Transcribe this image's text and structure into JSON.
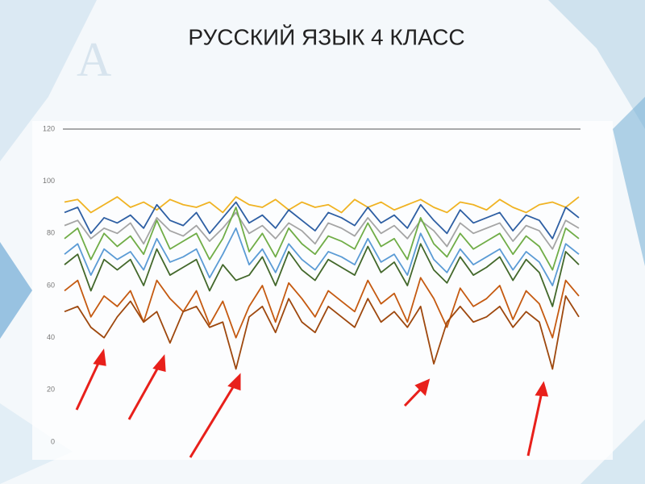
{
  "chart_data": {
    "type": "line",
    "title": "РУССКИЙ ЯЗЫК 4 КЛАСС",
    "ylim": [
      0,
      120
    ],
    "yticks": [
      0,
      20,
      40,
      60,
      80,
      100,
      120
    ],
    "grid": false,
    "series": [
      {
        "name": null,
        "color": "#f0b323",
        "values": [
          92,
          93,
          88,
          91,
          94,
          90,
          92,
          89,
          93,
          91,
          90,
          92,
          88,
          94,
          91,
          90,
          93,
          89,
          92,
          90,
          91,
          88,
          93,
          90,
          92,
          89,
          91,
          93,
          90,
          88,
          92,
          91,
          89,
          93,
          90,
          88,
          91,
          92,
          90,
          94
        ]
      },
      {
        "name": null,
        "color": "#2e5fa3",
        "values": [
          88,
          90,
          80,
          86,
          84,
          87,
          82,
          91,
          85,
          83,
          88,
          80,
          86,
          92,
          84,
          87,
          82,
          89,
          85,
          81,
          88,
          86,
          83,
          90,
          84,
          87,
          82,
          91,
          85,
          80,
          89,
          84,
          86,
          88,
          81,
          87,
          85,
          78,
          90,
          86
        ]
      },
      {
        "name": null,
        "color": "#a5a5a5",
        "values": [
          83,
          85,
          78,
          82,
          80,
          84,
          76,
          86,
          81,
          79,
          83,
          77,
          82,
          88,
          80,
          83,
          78,
          84,
          81,
          76,
          84,
          82,
          79,
          86,
          80,
          83,
          78,
          85,
          81,
          75,
          84,
          80,
          82,
          84,
          77,
          83,
          81,
          74,
          85,
          82
        ]
      },
      {
        "name": null,
        "color": "#70ad47",
        "values": [
          78,
          82,
          70,
          80,
          75,
          79,
          72,
          85,
          74,
          77,
          80,
          70,
          78,
          90,
          73,
          80,
          71,
          82,
          76,
          72,
          79,
          77,
          74,
          84,
          75,
          78,
          70,
          86,
          76,
          71,
          80,
          74,
          77,
          80,
          72,
          79,
          75,
          66,
          82,
          78
        ]
      },
      {
        "name": null,
        "color": "#5b9bd5",
        "values": [
          72,
          76,
          64,
          74,
          70,
          73,
          66,
          78,
          69,
          71,
          74,
          63,
          72,
          82,
          68,
          74,
          65,
          76,
          70,
          66,
          73,
          71,
          68,
          78,
          69,
          72,
          64,
          80,
          70,
          65,
          74,
          68,
          71,
          74,
          66,
          73,
          69,
          60,
          76,
          72
        ]
      },
      {
        "name": null,
        "color": "#43682b",
        "values": [
          68,
          72,
          58,
          70,
          66,
          70,
          60,
          74,
          64,
          67,
          70,
          58,
          68,
          62,
          64,
          71,
          60,
          73,
          66,
          62,
          70,
          67,
          64,
          75,
          65,
          69,
          60,
          76,
          66,
          61,
          71,
          64,
          67,
          71,
          62,
          70,
          65,
          52,
          73,
          68
        ]
      },
      {
        "name": null,
        "color": "#c55a11",
        "values": [
          58,
          62,
          48,
          56,
          52,
          58,
          46,
          62,
          55,
          50,
          58,
          45,
          54,
          40,
          52,
          60,
          46,
          61,
          55,
          48,
          58,
          54,
          50,
          62,
          53,
          57,
          46,
          63,
          55,
          44,
          59,
          52,
          55,
          60,
          47,
          58,
          53,
          40,
          62,
          56
        ]
      },
      {
        "name": null,
        "color": "#9e480e",
        "values": [
          50,
          52,
          44,
          40,
          48,
          54,
          46,
          50,
          38,
          50,
          52,
          44,
          46,
          28,
          48,
          52,
          42,
          55,
          46,
          42,
          52,
          48,
          44,
          55,
          46,
          50,
          44,
          52,
          30,
          46,
          52,
          46,
          48,
          52,
          44,
          50,
          46,
          28,
          56,
          48
        ]
      }
    ]
  }
}
